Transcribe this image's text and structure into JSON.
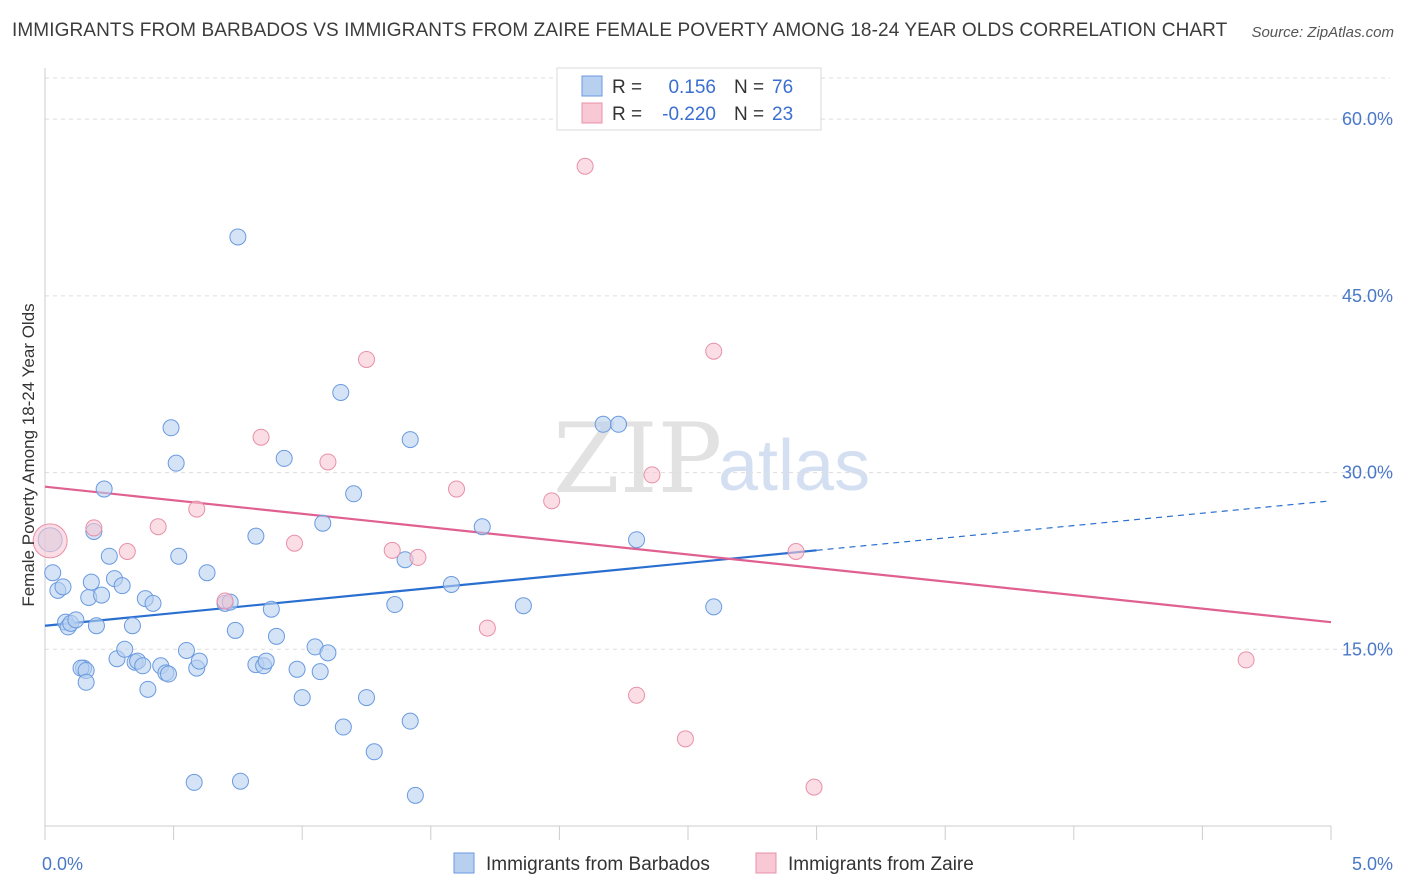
{
  "title": "IMMIGRANTS FROM BARBADOS VS IMMIGRANTS FROM ZAIRE FEMALE POVERTY AMONG 18-24 YEAR OLDS CORRELATION CHART",
  "source": "Source: ZipAtlas.com",
  "watermark": {
    "zip": "ZIP",
    "atlas": "atlas"
  },
  "colors": {
    "blue_fill": "#b8d0f0",
    "blue_stroke": "#6a9ae0",
    "blue_line": "#2a6fd0",
    "pink_fill": "#f8c8d4",
    "pink_stroke": "#e890a8",
    "pink_line": "#e06090",
    "grid": "#dddddd",
    "tick_text": "#4a78c8"
  },
  "legend": {
    "rows": [
      {
        "r_label": "R =",
        "r_value": "0.156",
        "n_label": "N =",
        "n_value": "76",
        "color": "blue"
      },
      {
        "r_label": "R =",
        "r_value": "-0.220",
        "n_label": "N =",
        "n_value": "23",
        "color": "pink"
      }
    ]
  },
  "bottom_legend": [
    {
      "label": "Immigrants from Barbados",
      "color": "blue"
    },
    {
      "label": "Immigrants from Zaire",
      "color": "pink"
    }
  ],
  "chart_data": {
    "type": "scatter",
    "title": "IMMIGRANTS FROM BARBADOS VS IMMIGRANTS FROM ZAIRE FEMALE POVERTY AMONG 18-24 YEAR OLDS CORRELATION CHART",
    "xlabel": "",
    "ylabel": "Female Poverty Among 18-24 Year Olds",
    "xlim": [
      0,
      5
    ],
    "ylim": [
      0,
      64
    ],
    "x_tick_labels": [
      "0.0%",
      "5.0%"
    ],
    "x_ticks": [
      0,
      5
    ],
    "y_tick_labels": [
      "15.0%",
      "30.0%",
      "45.0%",
      "60.0%"
    ],
    "y_ticks": [
      15,
      30,
      45,
      60
    ],
    "grid": true,
    "legend_position": "top-center",
    "series": [
      {
        "name": "Immigrants from Barbados",
        "color": "blue",
        "trend": {
          "x0": 0,
          "y0": 17.0,
          "x1": 3.0,
          "y1": 23.4,
          "dashed_to_x": 5.0,
          "dashed_to_y": 27.6
        },
        "points": [
          [
            0.02,
            24.3,
            2
          ],
          [
            0.03,
            21.5,
            1
          ],
          [
            0.05,
            20.0,
            1
          ],
          [
            0.07,
            20.3,
            1
          ],
          [
            0.08,
            17.3,
            1
          ],
          [
            0.09,
            16.9,
            1
          ],
          [
            0.1,
            17.2,
            1
          ],
          [
            0.12,
            17.5,
            1
          ],
          [
            0.15,
            13.4,
            1
          ],
          [
            0.14,
            13.4,
            1
          ],
          [
            0.16,
            13.2,
            1
          ],
          [
            0.16,
            12.2,
            1
          ],
          [
            0.17,
            19.4,
            1
          ],
          [
            0.18,
            20.7,
            1
          ],
          [
            0.19,
            25.0,
            1
          ],
          [
            0.2,
            17.0,
            1
          ],
          [
            0.22,
            19.6,
            1
          ],
          [
            0.23,
            28.6,
            1
          ],
          [
            0.25,
            22.9,
            1
          ],
          [
            0.27,
            21.0,
            1
          ],
          [
            0.28,
            14.2,
            1
          ],
          [
            0.3,
            20.4,
            1
          ],
          [
            0.31,
            15.0,
            1
          ],
          [
            0.34,
            17.0,
            1
          ],
          [
            0.35,
            13.9,
            1
          ],
          [
            0.36,
            14.0,
            1
          ],
          [
            0.38,
            13.6,
            1
          ],
          [
            0.39,
            19.3,
            1
          ],
          [
            0.4,
            11.6,
            1
          ],
          [
            0.42,
            18.9,
            1
          ],
          [
            0.45,
            13.6,
            1
          ],
          [
            0.47,
            13.0,
            1
          ],
          [
            0.48,
            12.9,
            1
          ],
          [
            0.49,
            33.8,
            1
          ],
          [
            0.51,
            30.8,
            1
          ],
          [
            0.52,
            22.9,
            1
          ],
          [
            0.55,
            14.9,
            1
          ],
          [
            0.58,
            3.7,
            1
          ],
          [
            0.59,
            13.4,
            1
          ],
          [
            0.6,
            14.0,
            1
          ],
          [
            0.63,
            21.5,
            1
          ],
          [
            0.7,
            18.9,
            1
          ],
          [
            0.72,
            19.0,
            1
          ],
          [
            0.74,
            16.6,
            1
          ],
          [
            0.75,
            50.0,
            1
          ],
          [
            0.76,
            3.8,
            1
          ],
          [
            0.82,
            24.6,
            1
          ],
          [
            0.82,
            13.7,
            1
          ],
          [
            0.85,
            13.6,
            1
          ],
          [
            0.86,
            14.0,
            1
          ],
          [
            0.88,
            18.4,
            1
          ],
          [
            0.9,
            16.1,
            1
          ],
          [
            0.93,
            31.2,
            1
          ],
          [
            0.98,
            13.3,
            1
          ],
          [
            1.0,
            10.9,
            1
          ],
          [
            1.05,
            15.2,
            1
          ],
          [
            1.07,
            13.1,
            1
          ],
          [
            1.08,
            25.7,
            1
          ],
          [
            1.1,
            14.7,
            1
          ],
          [
            1.15,
            36.8,
            1
          ],
          [
            1.16,
            8.4,
            1
          ],
          [
            1.2,
            28.2,
            1
          ],
          [
            1.25,
            10.9,
            1
          ],
          [
            1.28,
            6.3,
            1
          ],
          [
            1.36,
            18.8,
            1
          ],
          [
            1.4,
            22.6,
            1
          ],
          [
            1.42,
            32.8,
            1
          ],
          [
            1.44,
            2.6,
            1
          ],
          [
            1.42,
            8.9,
            1
          ],
          [
            1.58,
            20.5,
            1
          ],
          [
            1.7,
            25.4,
            1
          ],
          [
            1.86,
            18.7,
            1
          ],
          [
            2.17,
            34.1,
            1
          ],
          [
            2.23,
            34.1,
            1
          ],
          [
            2.3,
            24.3,
            1
          ],
          [
            2.6,
            18.6,
            1
          ]
        ]
      },
      {
        "name": "Immigrants from Zaire",
        "color": "pink",
        "trend": {
          "x0": 0,
          "y0": 28.8,
          "x1": 5.0,
          "y1": 17.3
        },
        "points": [
          [
            0.02,
            24.2,
            3
          ],
          [
            0.19,
            25.3,
            1
          ],
          [
            0.32,
            23.3,
            1
          ],
          [
            0.44,
            25.4,
            1
          ],
          [
            0.59,
            26.9,
            1
          ],
          [
            0.7,
            19.1,
            1
          ],
          [
            0.84,
            33.0,
            1
          ],
          [
            0.97,
            24.0,
            1
          ],
          [
            1.1,
            30.9,
            1
          ],
          [
            1.25,
            39.6,
            1
          ],
          [
            1.35,
            23.4,
            1
          ],
          [
            1.45,
            22.8,
            1
          ],
          [
            1.6,
            28.6,
            1
          ],
          [
            1.72,
            16.8,
            1
          ],
          [
            1.97,
            27.6,
            1
          ],
          [
            2.1,
            56.0,
            1
          ],
          [
            2.3,
            11.1,
            1
          ],
          [
            2.36,
            29.8,
            1
          ],
          [
            2.49,
            7.4,
            1
          ],
          [
            2.6,
            40.3,
            1
          ],
          [
            2.92,
            23.3,
            1
          ],
          [
            2.99,
            3.3,
            1
          ],
          [
            4.67,
            14.1,
            1
          ]
        ]
      }
    ]
  }
}
